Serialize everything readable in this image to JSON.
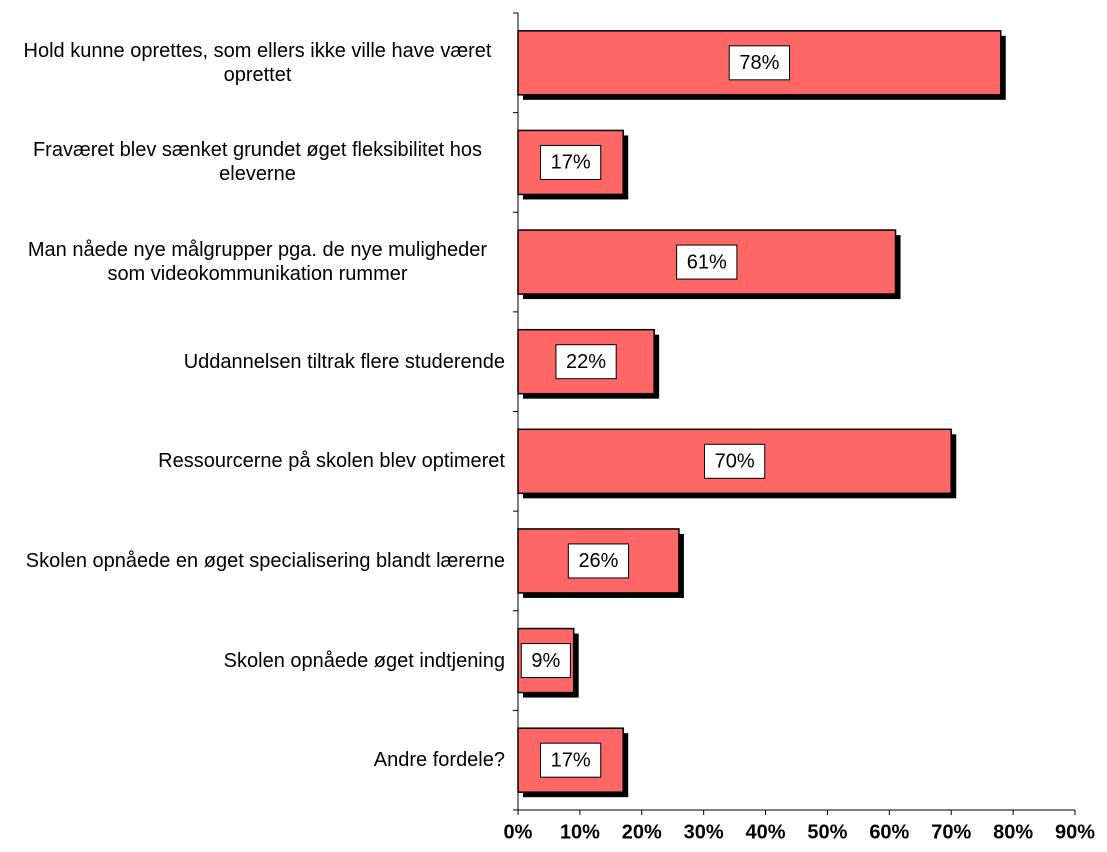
{
  "chart_data": {
    "type": "bar",
    "orientation": "horizontal",
    "categories": [
      "Hold kunne oprettes, som ellers ikke ville have været oprettet",
      "Fraværet blev sænket grundet øget fleksibilitet hos eleverne",
      "Man nåede nye målgrupper pga. de nye muligheder som videokommunikation rummer",
      "Uddannelsen tiltrak flere studerende",
      "Ressourcerne på skolen blev optimeret",
      "Skolen opnåede en øget specialisering blandt lærerne",
      "Skolen opnåede øget indtjening",
      "Andre fordele?"
    ],
    "values": [
      78,
      17,
      61,
      22,
      70,
      26,
      9,
      17
    ],
    "value_labels": [
      "78%",
      "17%",
      "61%",
      "22%",
      "70%",
      "26%",
      "9%",
      "17%"
    ],
    "color": "#ff6666",
    "xlim": [
      0,
      90
    ],
    "xticks": [
      {
        "value": 0,
        "label": "0%"
      },
      {
        "value": 10,
        "label": "10%"
      },
      {
        "value": 20,
        "label": "20%"
      },
      {
        "value": 30,
        "label": "30%"
      },
      {
        "value": 40,
        "label": "40%"
      },
      {
        "value": 50,
        "label": "50%"
      },
      {
        "value": 60,
        "label": "60%"
      },
      {
        "value": 70,
        "label": "70%"
      },
      {
        "value": 80,
        "label": "80%"
      },
      {
        "value": 90,
        "label": "90%"
      }
    ],
    "grid": false
  }
}
